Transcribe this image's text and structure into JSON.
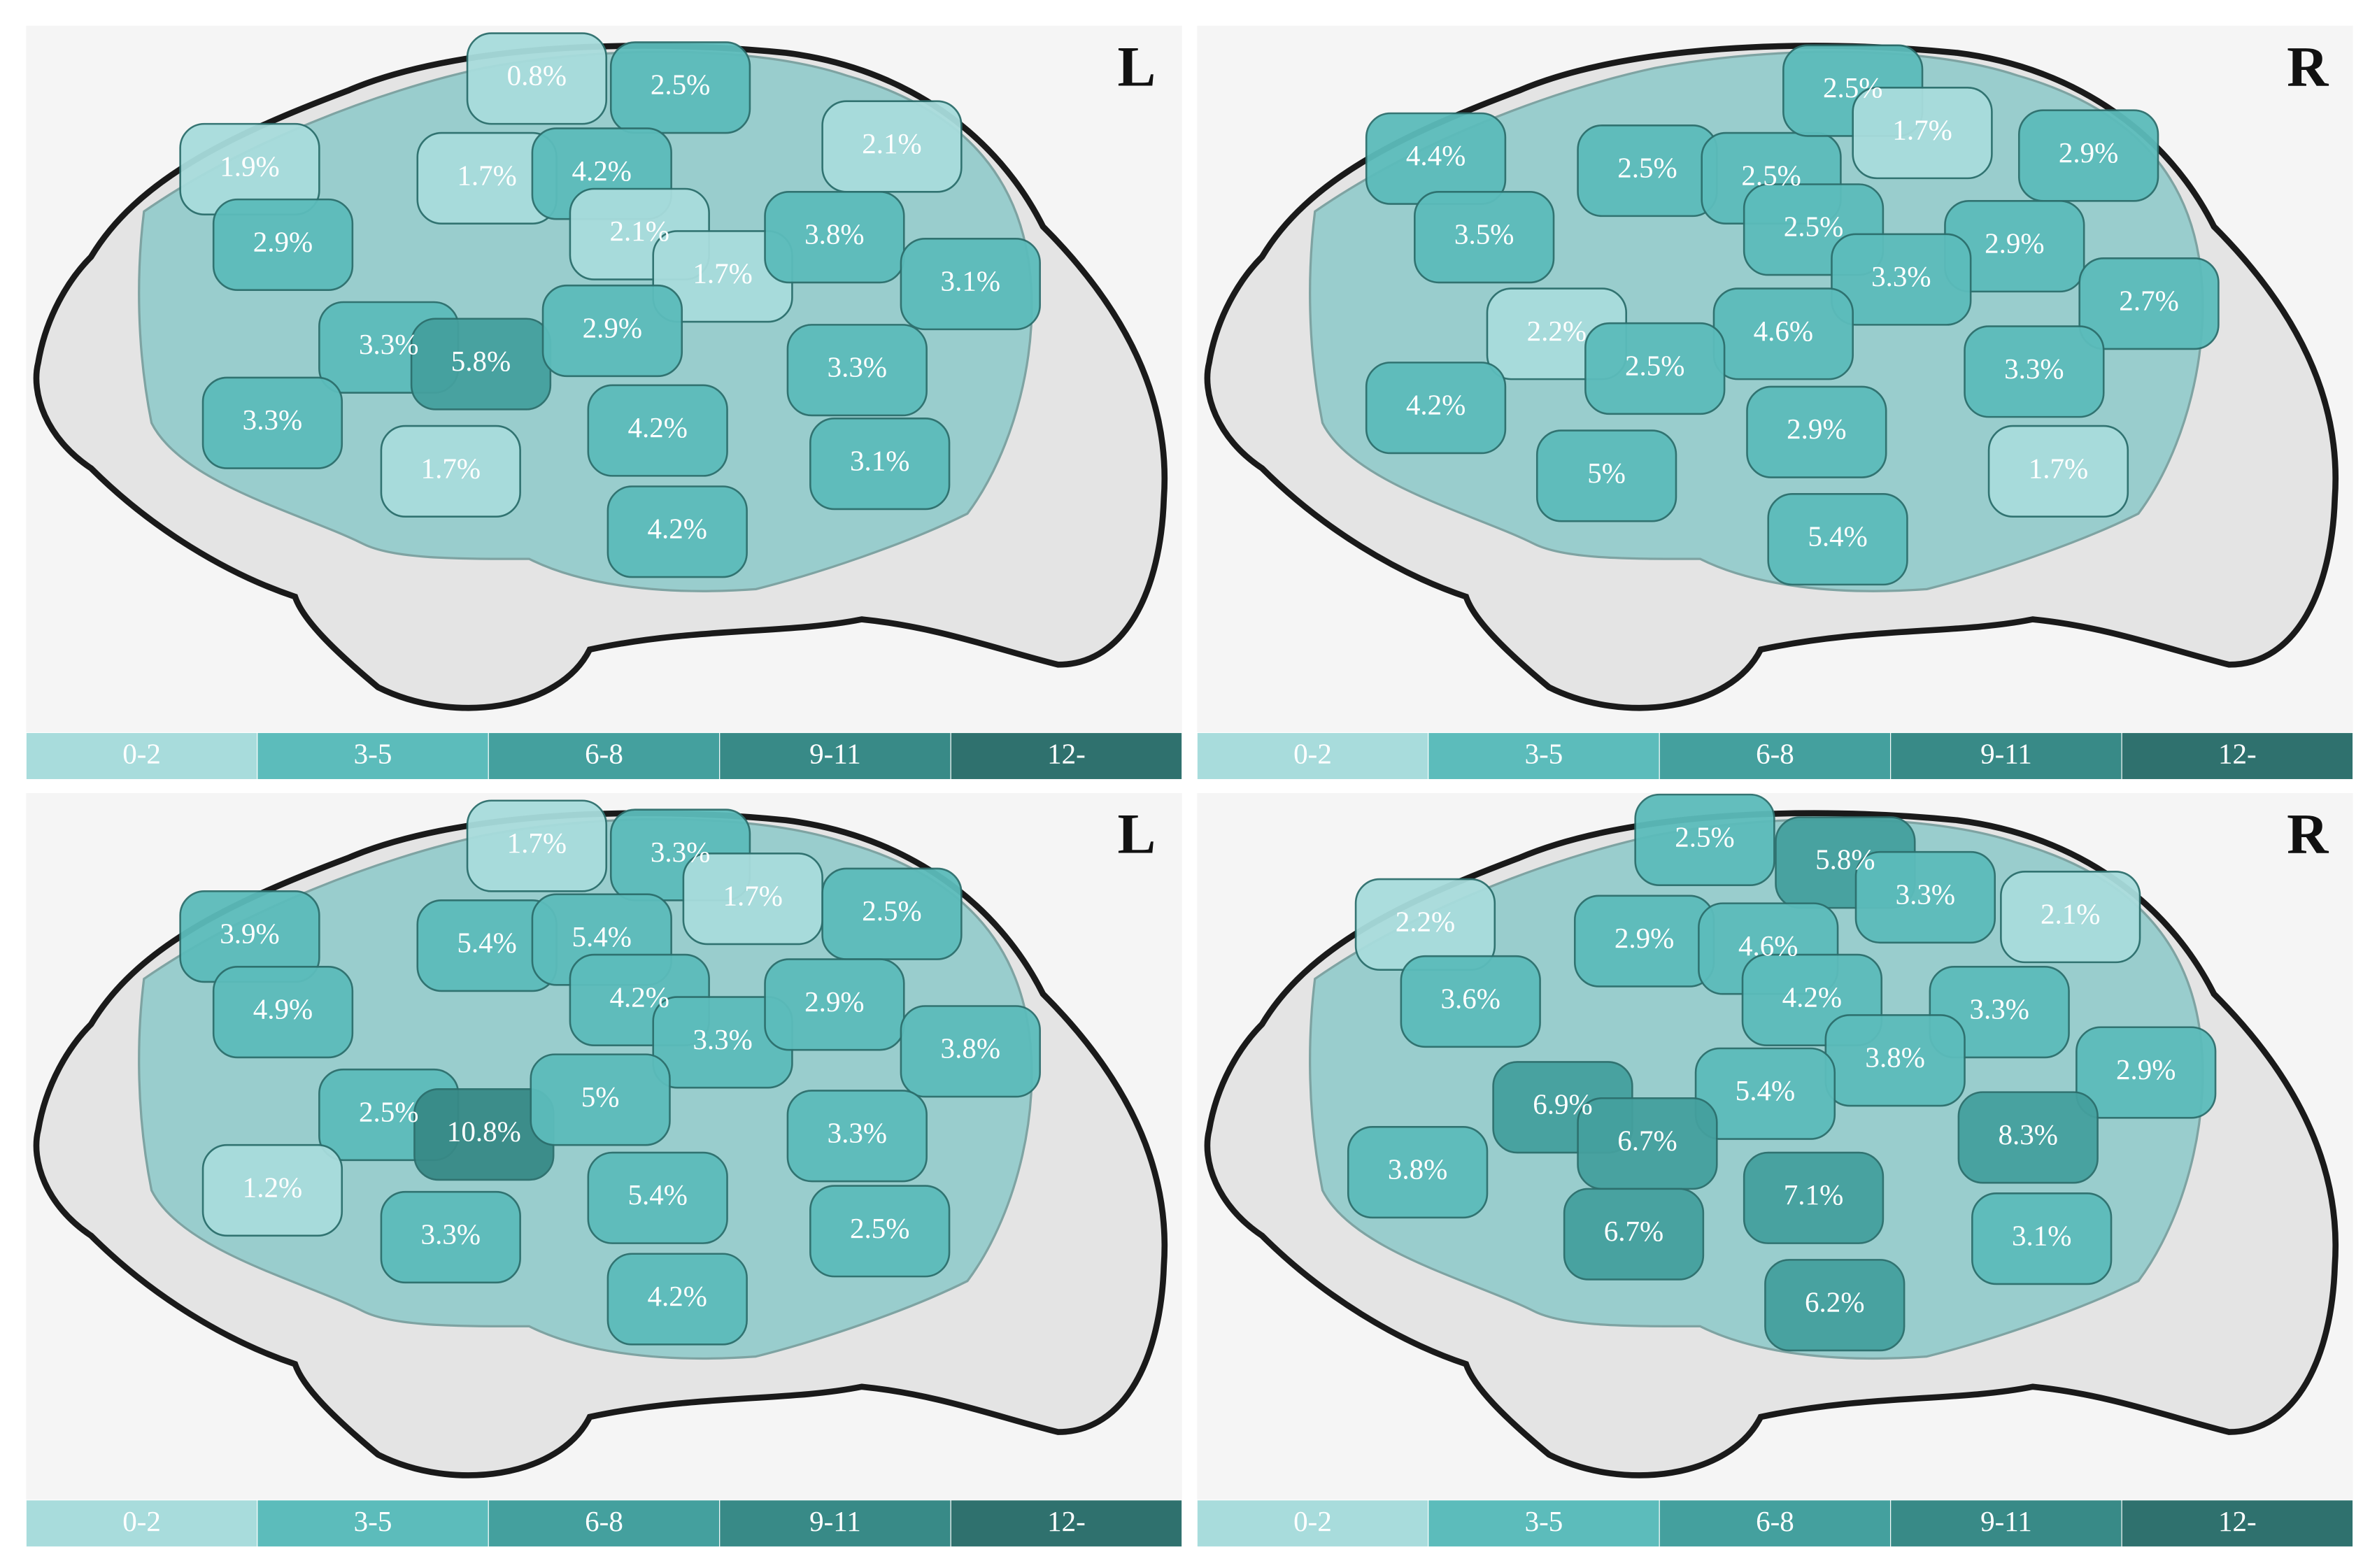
{
  "panels": [
    {
      "side": "L",
      "regions": [
        {
          "label": "0.8%",
          "color": "#a8dcdc"
        },
        {
          "label": "2.5%",
          "color": "#5cbcbb"
        },
        {
          "label": "1.9%",
          "color": "#a8dcdc"
        },
        {
          "label": "1.7%",
          "color": "#a8dcdc"
        },
        {
          "label": "4.2%",
          "color": "#5cbcbb"
        },
        {
          "label": "2.1%",
          "color": "#a8dcdc"
        },
        {
          "label": "2.9%",
          "color": "#5cbcbb"
        },
        {
          "label": "2.1%",
          "color": "#a8dcdc"
        },
        {
          "label": "1.7%",
          "color": "#a8dcdc"
        },
        {
          "label": "3.8%",
          "color": "#5cbcbb"
        },
        {
          "label": "3.1%",
          "color": "#5cbcbb"
        },
        {
          "label": "3.3%",
          "color": "#5cbcbb"
        },
        {
          "label": "5.8%",
          "color": "#44a09e"
        },
        {
          "label": "2.9%",
          "color": "#5cbcbb"
        },
        {
          "label": "3.3%",
          "color": "#5cbcbb"
        },
        {
          "label": "3.3%",
          "color": "#5cbcbb"
        },
        {
          "label": "4.2%",
          "color": "#5cbcbb"
        },
        {
          "label": "1.7%",
          "color": "#a8dcdc"
        },
        {
          "label": "3.1%",
          "color": "#5cbcbb"
        },
        {
          "label": "4.2%",
          "color": "#5cbcbb"
        }
      ]
    },
    {
      "side": "R",
      "regions": [
        {
          "label": "4.4%",
          "color": "#5cbcbb"
        },
        {
          "label": "2.5%",
          "color": "#5cbcbb"
        },
        {
          "label": "2.5%",
          "color": "#5cbcbb"
        },
        {
          "label": "2.5%",
          "color": "#5cbcbb"
        },
        {
          "label": "1.7%",
          "color": "#a8dcdc"
        },
        {
          "label": "2.9%",
          "color": "#5cbcbb"
        },
        {
          "label": "3.5%",
          "color": "#5cbcbb"
        },
        {
          "label": "2.5%",
          "color": "#5cbcbb"
        },
        {
          "label": "2.9%",
          "color": "#5cbcbb"
        },
        {
          "label": "3.3%",
          "color": "#5cbcbb"
        },
        {
          "label": "2.7%",
          "color": "#5cbcbb"
        },
        {
          "label": "2.2%",
          "color": "#a8dcdc"
        },
        {
          "label": "4.6%",
          "color": "#5cbcbb"
        },
        {
          "label": "2.5%",
          "color": "#5cbcbb"
        },
        {
          "label": "3.3%",
          "color": "#5cbcbb"
        },
        {
          "label": "4.2%",
          "color": "#5cbcbb"
        },
        {
          "label": "2.9%",
          "color": "#5cbcbb"
        },
        {
          "label": "1.7%",
          "color": "#a8dcdc"
        },
        {
          "label": "5%",
          "color": "#5cbcbb"
        },
        {
          "label": "5.4%",
          "color": "#5cbcbb"
        }
      ]
    },
    {
      "side": "L",
      "regions": [
        {
          "label": "1.7%",
          "color": "#a8dcdc"
        },
        {
          "label": "3.3%",
          "color": "#5cbcbb"
        },
        {
          "label": "1.7%",
          "color": "#a8dcdc"
        },
        {
          "label": "3.9%",
          "color": "#5cbcbb"
        },
        {
          "label": "5.4%",
          "color": "#5cbcbb"
        },
        {
          "label": "5.4%",
          "color": "#5cbcbb"
        },
        {
          "label": "2.5%",
          "color": "#5cbcbb"
        },
        {
          "label": "4.9%",
          "color": "#5cbcbb"
        },
        {
          "label": "4.2%",
          "color": "#5cbcbb"
        },
        {
          "label": "3.3%",
          "color": "#5cbcbb"
        },
        {
          "label": "2.9%",
          "color": "#5cbcbb"
        },
        {
          "label": "3.8%",
          "color": "#5cbcbb"
        },
        {
          "label": "2.5%",
          "color": "#5cbcbb"
        },
        {
          "label": "10.8%",
          "color": "#388a87"
        },
        {
          "label": "5%",
          "color": "#5cbcbb"
        },
        {
          "label": "3.3%",
          "color": "#5cbcbb"
        },
        {
          "label": "1.2%",
          "color": "#a8dcdc"
        },
        {
          "label": "5.4%",
          "color": "#5cbcbb"
        },
        {
          "label": "3.3%",
          "color": "#5cbcbb"
        },
        {
          "label": "2.5%",
          "color": "#5cbcbb"
        },
        {
          "label": "4.2%",
          "color": "#5cbcbb"
        }
      ]
    },
    {
      "side": "R",
      "regions": [
        {
          "label": "2.5%",
          "color": "#5cbcbb"
        },
        {
          "label": "5.8%",
          "color": "#44a09e"
        },
        {
          "label": "3.3%",
          "color": "#5cbcbb"
        },
        {
          "label": "2.2%",
          "color": "#a8dcdc"
        },
        {
          "label": "2.1%",
          "color": "#a8dcdc"
        },
        {
          "label": "2.9%",
          "color": "#5cbcbb"
        },
        {
          "label": "4.6%",
          "color": "#5cbcbb"
        },
        {
          "label": "3.6%",
          "color": "#5cbcbb"
        },
        {
          "label": "4.2%",
          "color": "#5cbcbb"
        },
        {
          "label": "3.3%",
          "color": "#5cbcbb"
        },
        {
          "label": "3.8%",
          "color": "#5cbcbb"
        },
        {
          "label": "2.9%",
          "color": "#5cbcbb"
        },
        {
          "label": "6.9%",
          "color": "#44a09e"
        },
        {
          "label": "5.4%",
          "color": "#5cbcbb"
        },
        {
          "label": "6.7%",
          "color": "#44a09e"
        },
        {
          "label": "8.3%",
          "color": "#44a09e"
        },
        {
          "label": "3.8%",
          "color": "#5cbcbb"
        },
        {
          "label": "7.1%",
          "color": "#44a09e"
        },
        {
          "label": "6.7%",
          "color": "#44a09e"
        },
        {
          "label": "3.1%",
          "color": "#5cbcbb"
        },
        {
          "label": "6.2%",
          "color": "#44a09e"
        }
      ]
    }
  ],
  "legend": [
    {
      "label": "0-2",
      "color": "#a8dcdc"
    },
    {
      "label": "3-5",
      "color": "#5cbcbb"
    },
    {
      "label": "6-8",
      "color": "#44a09e"
    },
    {
      "label": "9-11",
      "color": "#388a87"
    },
    {
      "label": "12-",
      "color": "#2f716e"
    }
  ]
}
